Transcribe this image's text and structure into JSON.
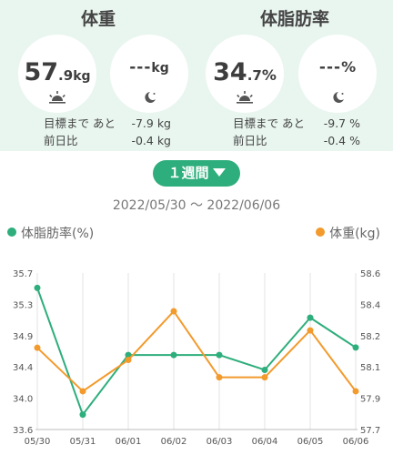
{
  "weight": {
    "title": "体重",
    "morning": {
      "int": "57",
      "dec": ".9",
      "unit": "kg"
    },
    "evening": {
      "value": "---",
      "unit": "kg"
    },
    "goal_label": "目標まで あと",
    "goal_value": "-7.9 kg",
    "prev_label": "前日比",
    "prev_value": "-0.4 kg"
  },
  "body_fat": {
    "title": "体脂肪率",
    "morning": {
      "int": "34",
      "dec": ".7",
      "unit": "%"
    },
    "evening": {
      "value": "---",
      "unit": "%"
    },
    "goal_label": "目標まで あと",
    "goal_value": "-9.7 %",
    "prev_label": "前日比",
    "prev_value": "-0.4 %"
  },
  "period_button": {
    "label": "１週間"
  },
  "date_range": "2022/05/30 ～ 2022/06/06",
  "icons": {
    "morning": "sunrise-icon",
    "evening": "moon-icon"
  },
  "colors": {
    "green": "#2eae7c",
    "orange": "#f39a2c",
    "summary_bg": "#e9f6ef"
  },
  "chart_data": {
    "type": "line",
    "categories": [
      "05/30",
      "05/31",
      "06/01",
      "06/02",
      "06/03",
      "06/04",
      "06/05",
      "06/06"
    ],
    "series": [
      {
        "name": "体脂肪率(%)",
        "axis": "left",
        "color": "#2eae7c",
        "values": [
          35.5,
          33.8,
          34.6,
          34.6,
          34.6,
          34.4,
          35.1,
          34.7
        ]
      },
      {
        "name": "体重(kg)",
        "axis": "right",
        "color": "#f39a2c",
        "values": [
          58.17,
          57.92,
          58.1,
          58.38,
          58.0,
          58.0,
          58.27,
          57.92
        ]
      }
    ],
    "left_axis": {
      "ticks": [
        "35.7",
        "35.3",
        "34.9",
        "34.4",
        "34.0",
        "33.6"
      ],
      "ylim": [
        33.6,
        35.7
      ]
    },
    "right_axis": {
      "ticks": [
        "58.6",
        "58.4",
        "58.2",
        "58.1",
        "57.9",
        "57.7"
      ],
      "ylim": [
        57.7,
        58.6
      ]
    },
    "grid": "vertical"
  }
}
